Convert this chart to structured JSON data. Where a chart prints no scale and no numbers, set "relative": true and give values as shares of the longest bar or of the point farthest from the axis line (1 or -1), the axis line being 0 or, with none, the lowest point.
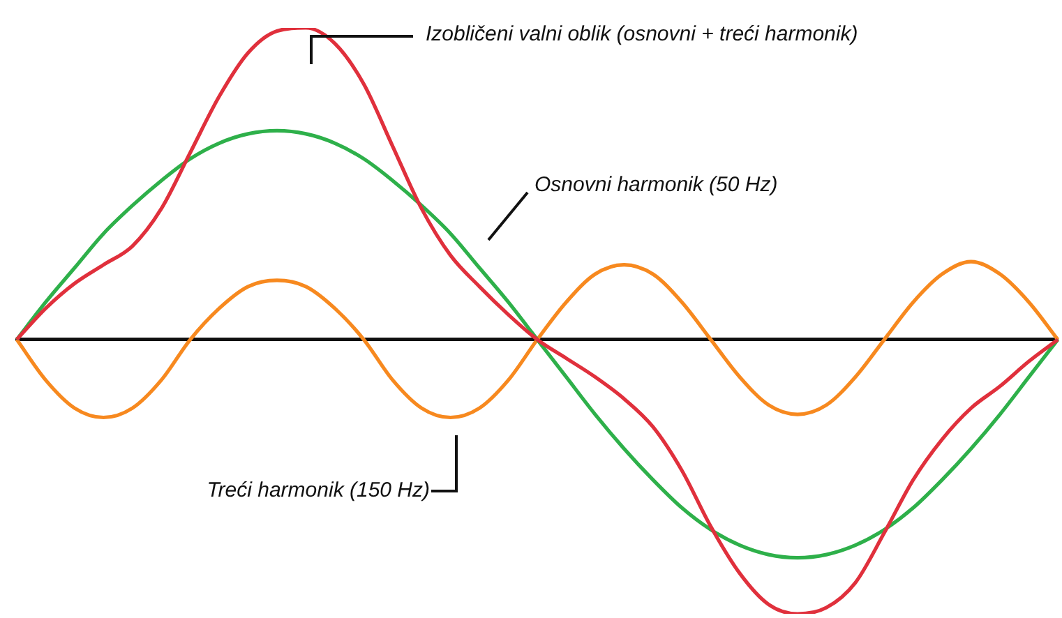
{
  "chart_data": {
    "type": "line",
    "relative": true,
    "annotations": [
      "Izobličeni valni oblik (osnovni + treći harmonik)",
      "Osnovni harmonik (50 Hz)",
      "Treći harmonik (150 Hz)"
    ],
    "categories": [
      null,
      null,
      null,
      null,
      null,
      null,
      null,
      null,
      null,
      null,
      null,
      null,
      null,
      null,
      null,
      null,
      null,
      null,
      null,
      null,
      null,
      null,
      null,
      null,
      null,
      null,
      null,
      null,
      null,
      null,
      null,
      null,
      null,
      null,
      null,
      null,
      null
    ],
    "series": [
      {
        "color": "#e0303c",
        "values": [
          0,
          0.1,
          0.18,
          0.24,
          0.3,
          0.42,
          0.6,
          0.78,
          0.92,
          0.99,
          1,
          0.95,
          0.82,
          0.62,
          0.42,
          0.27,
          0.17,
          0.08,
          0,
          -0.06,
          -0.12,
          -0.19,
          -0.28,
          -0.42,
          -0.6,
          -0.75,
          -0.85,
          -0.88,
          -0.86,
          -0.78,
          -0.62,
          -0.45,
          -0.32,
          -0.22,
          -0.15,
          -0.07,
          0
        ]
      },
      {
        "color": "#2eb04a",
        "values": [
          0,
          0.12,
          0.23,
          0.34,
          0.43,
          0.51,
          0.58,
          0.63,
          0.66,
          0.67,
          0.66,
          0.63,
          0.58,
          0.51,
          0.43,
          0.34,
          0.23,
          0.12,
          0,
          -0.12,
          -0.24,
          -0.35,
          -0.45,
          -0.54,
          -0.61,
          -0.66,
          -0.69,
          -0.7,
          -0.69,
          -0.66,
          -0.61,
          -0.54,
          -0.45,
          -0.35,
          -0.24,
          -0.12,
          0
        ]
      },
      {
        "color": "#f7891f",
        "values": [
          0,
          -0.13,
          -0.22,
          -0.25,
          -0.22,
          -0.13,
          0,
          0.1,
          0.17,
          0.19,
          0.17,
          0.1,
          0,
          -0.13,
          -0.22,
          -0.25,
          -0.22,
          -0.13,
          0,
          0.12,
          0.21,
          0.24,
          0.21,
          0.12,
          0,
          -0.12,
          -0.21,
          -0.24,
          -0.21,
          -0.12,
          0,
          0.12,
          0.21,
          0.25,
          0.21,
          0.12,
          0
        ]
      }
    ]
  }
}
